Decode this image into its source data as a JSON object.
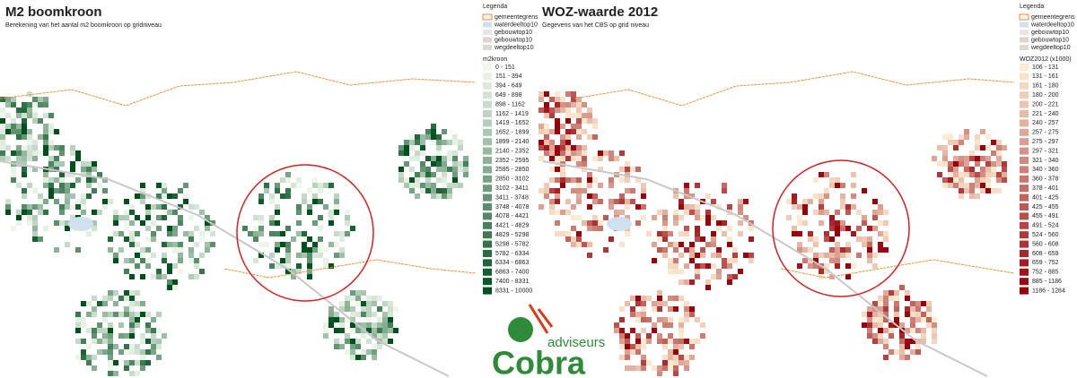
{
  "left": {
    "title": "M2 boomkroon",
    "subtitle": "Berekening van het aantal m2 boomkroon op gridniveau",
    "legend": {
      "title": "Legenda",
      "items": [
        "gemeentegrens",
        "waterdeeltop10",
        "gebouwtop10",
        "gebouwtop10",
        "wegdeeltop10"
      ],
      "class_title": "m2kroon",
      "classes": [
        "0 - 151",
        "151 - 394",
        "394 - 649",
        "649 - 898",
        "898 - 1162",
        "1162 - 1419",
        "1419 - 1652",
        "1652 - 1899",
        "1899 - 2140",
        "2140 - 2352",
        "2352 - 2595",
        "2595 - 2850",
        "2850 - 3102",
        "3102 - 3411",
        "3411 - 3748",
        "3748 - 4078",
        "4078 - 4421",
        "4421 - 4829",
        "4829 - 5298",
        "5298 - 5782",
        "5782 - 6334",
        "6334 - 6863",
        "6863 - 7400",
        "7400 - 8331",
        "8331 - 10000"
      ]
    }
  },
  "right": {
    "title": "WOZ-waarde 2012",
    "subtitle": "Gegevens van het CBS op grid niveau",
    "legend": {
      "title": "Legenda",
      "items": [
        "gemeentegrens",
        "waterdeeltop10",
        "gebouwtop10",
        "gebouwtop10",
        "wegdeeltop10"
      ],
      "class_title": "WOZ2012 (x1000)",
      "classes": [
        "106 - 131",
        "131 - 161",
        "161 - 180",
        "180 - 200",
        "200 - 221",
        "221 - 240",
        "240 - 257",
        "257 - 275",
        "275 - 297",
        "297 - 321",
        "321 - 340",
        "340 - 360",
        "360 - 378",
        "378 - 401",
        "401 - 425",
        "425 - 455",
        "455 - 491",
        "491 - 524",
        "524 - 560",
        "560 - 608",
        "608 - 659",
        "659 - 752",
        "752 - 885",
        "885 - 1186",
        "1186 - 1284"
      ]
    }
  },
  "logo": {
    "tagline": "adviseurs",
    "name": "Cobra"
  }
}
